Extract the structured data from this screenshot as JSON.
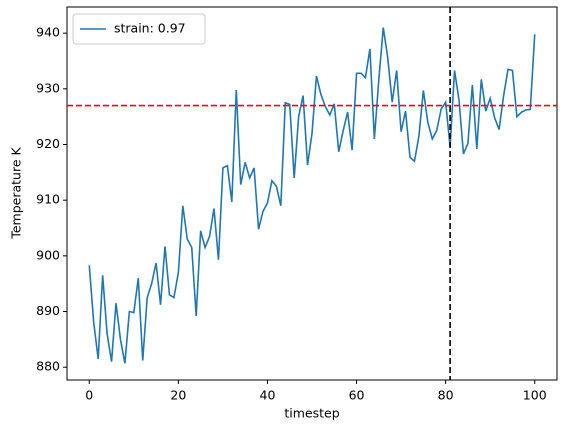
{
  "chart_data": {
    "type": "line",
    "xlabel": "timestep",
    "ylabel": "Temperature K",
    "x": [
      0,
      1,
      2,
      3,
      4,
      5,
      6,
      7,
      8,
      9,
      10,
      11,
      12,
      13,
      14,
      15,
      16,
      17,
      18,
      19,
      20,
      21,
      22,
      23,
      24,
      25,
      26,
      27,
      28,
      29,
      30,
      31,
      32,
      33,
      34,
      35,
      36,
      37,
      38,
      39,
      40,
      41,
      42,
      43,
      44,
      45,
      46,
      47,
      48,
      49,
      50,
      51,
      52,
      53,
      54,
      55,
      56,
      57,
      58,
      59,
      60,
      61,
      62,
      63,
      64,
      65,
      66,
      67,
      68,
      69,
      70,
      71,
      72,
      73,
      74,
      75,
      76,
      77,
      78,
      79,
      80,
      81,
      82,
      83,
      84,
      85,
      86,
      87,
      88,
      89,
      90,
      91,
      92,
      93,
      94,
      95,
      96,
      97,
      98,
      99,
      100
    ],
    "series": [
      {
        "name": "strain: 0.97",
        "color": "#1f77b4",
        "values": [
          898.3,
          888,
          881.5,
          896.5,
          886,
          881,
          891.5,
          885,
          880.7,
          890,
          889.8,
          896,
          881.2,
          892.5,
          895,
          898.7,
          891.2,
          901.7,
          893,
          892.5,
          897,
          909,
          903,
          901.5,
          889.2,
          904.5,
          901.5,
          903.5,
          908.5,
          899.3,
          915.8,
          916.2,
          909.7,
          929.8,
          912.8,
          916.8,
          914,
          915.8,
          904.8,
          908,
          909.5,
          913.5,
          912.5,
          909,
          927.5,
          927.2,
          914,
          925,
          928.8,
          916.3,
          922,
          932.3,
          929,
          926.8,
          925.3,
          927.3,
          918.7,
          922.5,
          925.8,
          919,
          932.8,
          932.8,
          932,
          937.2,
          921,
          931.7,
          941,
          935.6,
          927.6,
          933.3,
          922.3,
          926,
          917.7,
          917,
          921.5,
          929.7,
          924,
          921,
          922.5,
          926.4,
          927.6,
          919.6,
          933.3,
          928,
          918.3,
          920.2,
          930.7,
          919.2,
          931.7,
          926,
          928.3,
          924.8,
          922.7,
          928.7,
          933.5,
          933.3,
          925,
          925.8,
          926.2,
          926.3,
          939.8
        ]
      }
    ],
    "hline": {
      "value": 927,
      "color": "#ff0000"
    },
    "vline": {
      "value": 81,
      "color": "#000000"
    },
    "xlim": [
      -5,
      105
    ],
    "ylim": [
      877.7,
      944.7
    ],
    "xticks": [
      0,
      20,
      40,
      60,
      80,
      100
    ],
    "yticks": [
      880,
      890,
      900,
      910,
      920,
      930,
      940
    ],
    "legend": "upper-left"
  }
}
